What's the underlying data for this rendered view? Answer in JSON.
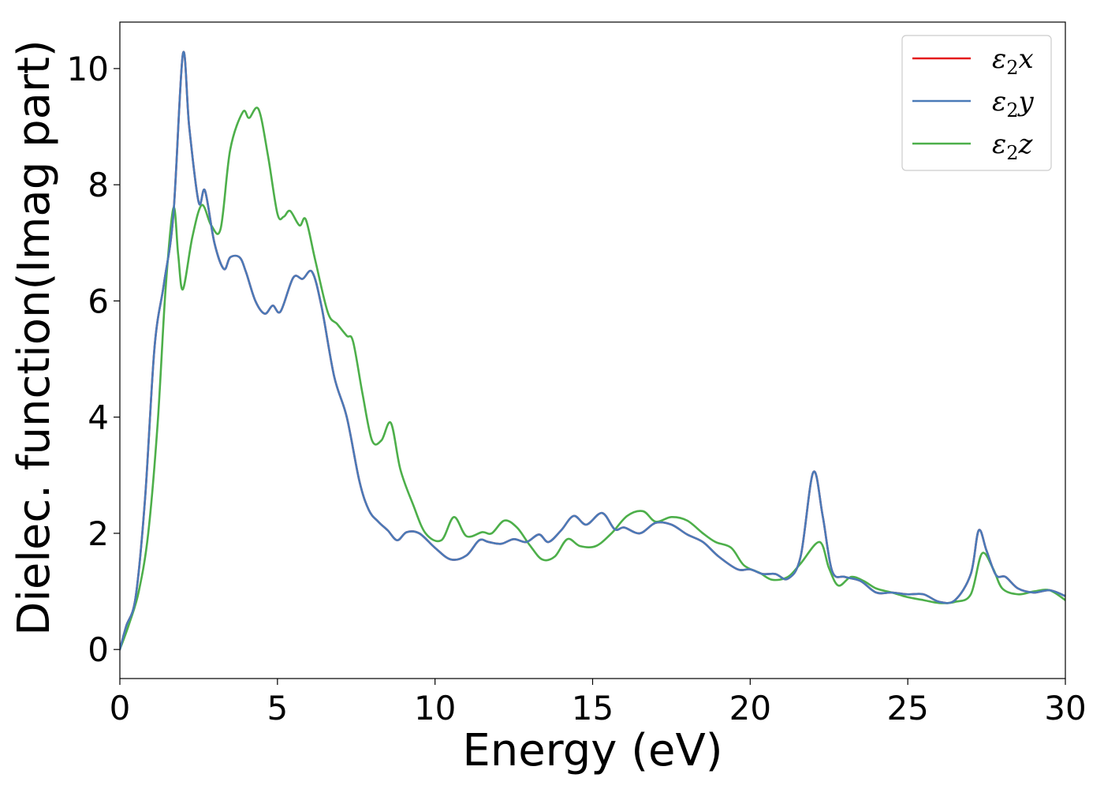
{
  "chart_data": {
    "type": "line",
    "xlabel": "Energy (eV)",
    "ylabel": "Dielec. function(Imag part)",
    "xlim": [
      0,
      30
    ],
    "ylim": [
      -0.5,
      10.8
    ],
    "xticks": [
      0,
      5,
      10,
      15,
      20,
      25,
      30
    ],
    "xtick_labels": [
      "0",
      "5",
      "10",
      "15",
      "20",
      "25",
      "30"
    ],
    "yticks": [
      0,
      2,
      4,
      6,
      8,
      10
    ],
    "ytick_labels": [
      "0",
      "2",
      "4",
      "6",
      "8",
      "10"
    ],
    "grid": false,
    "legend_position": "top-right",
    "colors": {
      "x": "#e41a1c",
      "y": "#4a7ab8",
      "z": "#4daf4a"
    },
    "series": [
      {
        "name": "ε2x",
        "legend_base": "ε",
        "legend_sub": "2",
        "legend_suffix": "x",
        "color": "#e41a1c",
        "points": [
          [
            0,
            0
          ],
          [
            0.2,
            0.4
          ],
          [
            0.5,
            0.9
          ],
          [
            0.8,
            2.6
          ],
          [
            1.1,
            5.2
          ],
          [
            1.4,
            6.3
          ],
          [
            1.7,
            7.5
          ],
          [
            2.0,
            10.25
          ],
          [
            2.2,
            9.0
          ],
          [
            2.5,
            7.7
          ],
          [
            2.7,
            7.9
          ],
          [
            3.0,
            7.0
          ],
          [
            3.3,
            6.55
          ],
          [
            3.5,
            6.75
          ],
          [
            3.8,
            6.75
          ],
          [
            4.0,
            6.5
          ],
          [
            4.3,
            6.0
          ],
          [
            4.6,
            5.78
          ],
          [
            4.85,
            5.92
          ],
          [
            5.1,
            5.82
          ],
          [
            5.5,
            6.4
          ],
          [
            5.8,
            6.38
          ],
          [
            6.1,
            6.5
          ],
          [
            6.4,
            5.9
          ],
          [
            6.8,
            4.7
          ],
          [
            7.2,
            4.0
          ],
          [
            7.6,
            2.9
          ],
          [
            7.9,
            2.4
          ],
          [
            8.2,
            2.2
          ],
          [
            8.5,
            2.05
          ],
          [
            8.8,
            1.88
          ],
          [
            9.1,
            2.02
          ],
          [
            9.5,
            2.0
          ],
          [
            10.0,
            1.75
          ],
          [
            10.5,
            1.55
          ],
          [
            11.0,
            1.62
          ],
          [
            11.4,
            1.88
          ],
          [
            11.7,
            1.85
          ],
          [
            12.1,
            1.82
          ],
          [
            12.5,
            1.9
          ],
          [
            12.9,
            1.85
          ],
          [
            13.3,
            1.98
          ],
          [
            13.6,
            1.85
          ],
          [
            14.0,
            2.05
          ],
          [
            14.4,
            2.3
          ],
          [
            14.8,
            2.15
          ],
          [
            15.3,
            2.35
          ],
          [
            15.7,
            2.07
          ],
          [
            16.0,
            2.1
          ],
          [
            16.5,
            2.0
          ],
          [
            17.0,
            2.18
          ],
          [
            17.5,
            2.15
          ],
          [
            18.0,
            1.98
          ],
          [
            18.5,
            1.85
          ],
          [
            19.0,
            1.6
          ],
          [
            19.6,
            1.38
          ],
          [
            20.0,
            1.38
          ],
          [
            20.4,
            1.3
          ],
          [
            20.8,
            1.3
          ],
          [
            21.2,
            1.22
          ],
          [
            21.6,
            1.6
          ],
          [
            22.0,
            3.05
          ],
          [
            22.3,
            2.3
          ],
          [
            22.6,
            1.35
          ],
          [
            23.0,
            1.25
          ],
          [
            23.5,
            1.18
          ],
          [
            24.0,
            0.98
          ],
          [
            24.5,
            0.98
          ],
          [
            25.0,
            0.95
          ],
          [
            25.5,
            0.95
          ],
          [
            26.0,
            0.82
          ],
          [
            26.5,
            0.85
          ],
          [
            27.0,
            1.3
          ],
          [
            27.25,
            2.05
          ],
          [
            27.5,
            1.7
          ],
          [
            27.8,
            1.28
          ],
          [
            28.1,
            1.25
          ],
          [
            28.5,
            1.05
          ],
          [
            29.0,
            0.98
          ],
          [
            29.5,
            1.02
          ],
          [
            30.0,
            0.92
          ]
        ]
      },
      {
        "name": "ε2y",
        "legend_base": "ε",
        "legend_sub": "2",
        "legend_suffix": "y",
        "color": "#4a7ab8",
        "points": [
          [
            0,
            0
          ],
          [
            0.2,
            0.4
          ],
          [
            0.5,
            0.9
          ],
          [
            0.8,
            2.6
          ],
          [
            1.1,
            5.2
          ],
          [
            1.4,
            6.3
          ],
          [
            1.7,
            7.5
          ],
          [
            2.0,
            10.25
          ],
          [
            2.2,
            9.0
          ],
          [
            2.5,
            7.7
          ],
          [
            2.7,
            7.9
          ],
          [
            3.0,
            7.0
          ],
          [
            3.3,
            6.55
          ],
          [
            3.5,
            6.75
          ],
          [
            3.8,
            6.75
          ],
          [
            4.0,
            6.5
          ],
          [
            4.3,
            6.0
          ],
          [
            4.6,
            5.78
          ],
          [
            4.85,
            5.92
          ],
          [
            5.1,
            5.82
          ],
          [
            5.5,
            6.4
          ],
          [
            5.8,
            6.38
          ],
          [
            6.1,
            6.5
          ],
          [
            6.4,
            5.9
          ],
          [
            6.8,
            4.7
          ],
          [
            7.2,
            4.0
          ],
          [
            7.6,
            2.9
          ],
          [
            7.9,
            2.4
          ],
          [
            8.2,
            2.2
          ],
          [
            8.5,
            2.05
          ],
          [
            8.8,
            1.88
          ],
          [
            9.1,
            2.02
          ],
          [
            9.5,
            2.0
          ],
          [
            10.0,
            1.75
          ],
          [
            10.5,
            1.55
          ],
          [
            11.0,
            1.62
          ],
          [
            11.4,
            1.88
          ],
          [
            11.7,
            1.85
          ],
          [
            12.1,
            1.82
          ],
          [
            12.5,
            1.9
          ],
          [
            12.9,
            1.85
          ],
          [
            13.3,
            1.98
          ],
          [
            13.6,
            1.85
          ],
          [
            14.0,
            2.05
          ],
          [
            14.4,
            2.3
          ],
          [
            14.8,
            2.15
          ],
          [
            15.3,
            2.35
          ],
          [
            15.7,
            2.07
          ],
          [
            16.0,
            2.1
          ],
          [
            16.5,
            2.0
          ],
          [
            17.0,
            2.18
          ],
          [
            17.5,
            2.15
          ],
          [
            18.0,
            1.98
          ],
          [
            18.5,
            1.85
          ],
          [
            19.0,
            1.6
          ],
          [
            19.6,
            1.38
          ],
          [
            20.0,
            1.38
          ],
          [
            20.4,
            1.3
          ],
          [
            20.8,
            1.3
          ],
          [
            21.2,
            1.22
          ],
          [
            21.6,
            1.6
          ],
          [
            22.0,
            3.05
          ],
          [
            22.3,
            2.3
          ],
          [
            22.6,
            1.35
          ],
          [
            23.0,
            1.25
          ],
          [
            23.5,
            1.18
          ],
          [
            24.0,
            0.98
          ],
          [
            24.5,
            0.98
          ],
          [
            25.0,
            0.95
          ],
          [
            25.5,
            0.95
          ],
          [
            26.0,
            0.82
          ],
          [
            26.5,
            0.85
          ],
          [
            27.0,
            1.3
          ],
          [
            27.25,
            2.05
          ],
          [
            27.5,
            1.7
          ],
          [
            27.8,
            1.28
          ],
          [
            28.1,
            1.25
          ],
          [
            28.5,
            1.05
          ],
          [
            29.0,
            0.98
          ],
          [
            29.5,
            1.02
          ],
          [
            30.0,
            0.92
          ]
        ]
      },
      {
        "name": "ε2z",
        "legend_base": "ε",
        "legend_sub": "2",
        "legend_suffix": "z",
        "color": "#4daf4a",
        "points": [
          [
            0,
            0
          ],
          [
            0.3,
            0.45
          ],
          [
            0.6,
            1.0
          ],
          [
            0.9,
            2.0
          ],
          [
            1.2,
            3.9
          ],
          [
            1.45,
            6.2
          ],
          [
            1.7,
            7.6
          ],
          [
            1.85,
            6.8
          ],
          [
            2.0,
            6.2
          ],
          [
            2.3,
            7.1
          ],
          [
            2.6,
            7.65
          ],
          [
            2.9,
            7.3
          ],
          [
            3.2,
            7.25
          ],
          [
            3.5,
            8.6
          ],
          [
            3.9,
            9.25
          ],
          [
            4.1,
            9.15
          ],
          [
            4.4,
            9.3
          ],
          [
            4.7,
            8.5
          ],
          [
            5.0,
            7.5
          ],
          [
            5.2,
            7.45
          ],
          [
            5.4,
            7.55
          ],
          [
            5.7,
            7.3
          ],
          [
            5.9,
            7.4
          ],
          [
            6.2,
            6.7
          ],
          [
            6.6,
            5.8
          ],
          [
            6.9,
            5.6
          ],
          [
            7.2,
            5.4
          ],
          [
            7.4,
            5.3
          ],
          [
            7.7,
            4.4
          ],
          [
            8.0,
            3.6
          ],
          [
            8.3,
            3.6
          ],
          [
            8.6,
            3.9
          ],
          [
            8.9,
            3.1
          ],
          [
            9.3,
            2.5
          ],
          [
            9.7,
            2.0
          ],
          [
            10.2,
            1.88
          ],
          [
            10.6,
            2.28
          ],
          [
            11.0,
            1.95
          ],
          [
            11.5,
            2.02
          ],
          [
            11.8,
            2.0
          ],
          [
            12.2,
            2.22
          ],
          [
            12.6,
            2.1
          ],
          [
            13.0,
            1.8
          ],
          [
            13.4,
            1.55
          ],
          [
            13.8,
            1.6
          ],
          [
            14.2,
            1.9
          ],
          [
            14.6,
            1.78
          ],
          [
            15.1,
            1.78
          ],
          [
            15.6,
            2.0
          ],
          [
            16.1,
            2.3
          ],
          [
            16.6,
            2.38
          ],
          [
            17.0,
            2.2
          ],
          [
            17.5,
            2.28
          ],
          [
            18.0,
            2.22
          ],
          [
            18.5,
            2.0
          ],
          [
            18.9,
            1.85
          ],
          [
            19.4,
            1.75
          ],
          [
            19.8,
            1.45
          ],
          [
            20.3,
            1.32
          ],
          [
            20.7,
            1.2
          ],
          [
            21.2,
            1.25
          ],
          [
            21.6,
            1.48
          ],
          [
            22.2,
            1.85
          ],
          [
            22.5,
            1.4
          ],
          [
            22.8,
            1.1
          ],
          [
            23.2,
            1.25
          ],
          [
            23.6,
            1.18
          ],
          [
            24.0,
            1.05
          ],
          [
            24.5,
            0.98
          ],
          [
            25.0,
            0.9
          ],
          [
            25.5,
            0.85
          ],
          [
            26.0,
            0.8
          ],
          [
            26.5,
            0.82
          ],
          [
            27.0,
            0.95
          ],
          [
            27.35,
            1.65
          ],
          [
            27.7,
            1.4
          ],
          [
            28.0,
            1.05
          ],
          [
            28.5,
            0.95
          ],
          [
            29.0,
            1.0
          ],
          [
            29.5,
            1.02
          ],
          [
            30.0,
            0.85
          ]
        ]
      }
    ]
  }
}
